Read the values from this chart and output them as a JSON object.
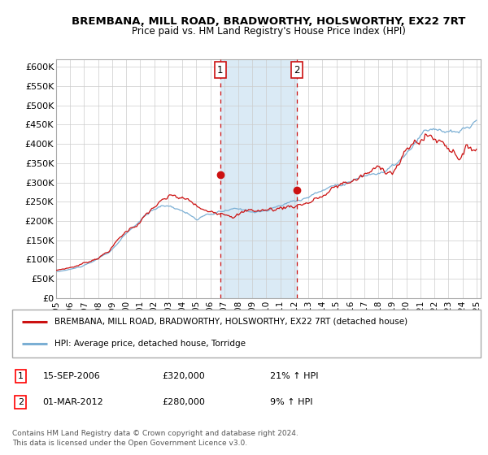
{
  "title": "BREMBANA, MILL ROAD, BRADWORTHY, HOLSWORTHY, EX22 7RT",
  "subtitle": "Price paid vs. HM Land Registry's House Price Index (HPI)",
  "legend_line1": "BREMBANA, MILL ROAD, BRADWORTHY, HOLSWORTHY, EX22 7RT (detached house)",
  "legend_line2": "HPI: Average price, detached house, Torridge",
  "annotation1_date": "15-SEP-2006",
  "annotation1_price": "£320,000",
  "annotation1_hpi": "21% ↑ HPI",
  "annotation1_year": 2006.71,
  "annotation1_value": 320000,
  "annotation2_date": "01-MAR-2012",
  "annotation2_price": "£280,000",
  "annotation2_hpi": "9% ↑ HPI",
  "annotation2_year": 2012.17,
  "annotation2_value": 280000,
  "shade_color": "#daeaf5",
  "red_color": "#cc1111",
  "blue_color": "#7bafd4",
  "marker_color": "#cc1111",
  "footer": "Contains HM Land Registry data © Crown copyright and database right 2024.\nThis data is licensed under the Open Government Licence v3.0.",
  "ylim_min": 0,
  "ylim_max": 620000,
  "xlim_min": 1995.0,
  "xlim_max": 2025.3,
  "xtick_years": [
    1995,
    1996,
    1997,
    1998,
    1999,
    2000,
    2001,
    2002,
    2003,
    2004,
    2005,
    2006,
    2007,
    2008,
    2009,
    2010,
    2011,
    2012,
    2013,
    2014,
    2015,
    2016,
    2017,
    2018,
    2019,
    2020,
    2021,
    2022,
    2023,
    2024,
    2025
  ]
}
